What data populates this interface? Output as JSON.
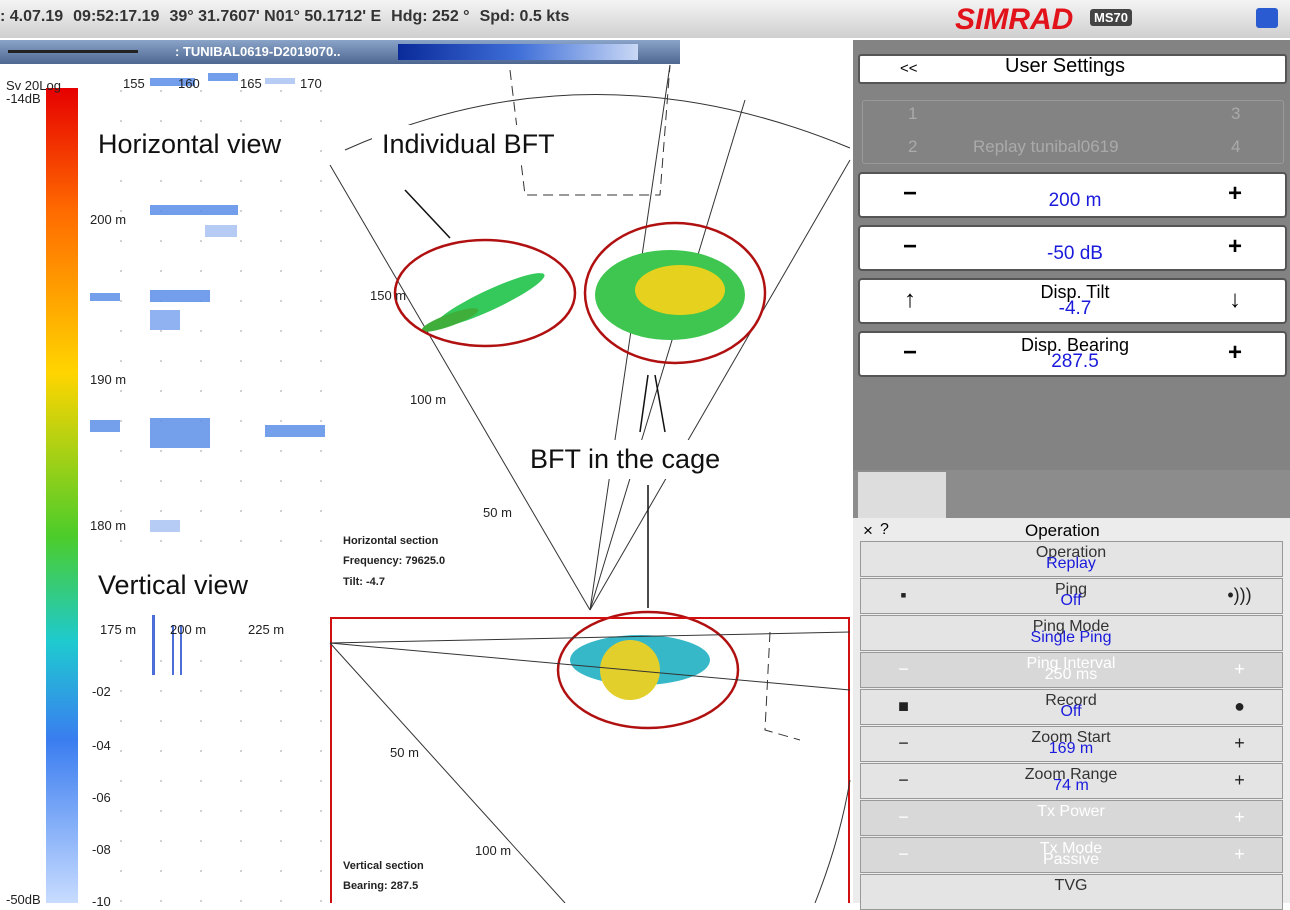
{
  "status_bar": {
    "items": [
      ": 4.07.19",
      "09:52:17.19",
      "39° 31.7607' N01° 50.1712' E",
      "Hdg: 252 °",
      "Spd: 0.5 kts"
    ],
    "brand": "SIMRAD",
    "model": "MS70"
  },
  "file_bar": {
    "name": ": TUNIBAL0619-D2019070.."
  },
  "color_scale": {
    "title": "Sv 20Log",
    "max": "-14dB",
    "min": "-50dB"
  },
  "horizontal_view": {
    "x_ticks": [
      "155",
      "160",
      "165",
      "170"
    ],
    "y_ticks": [
      "200 m",
      "190 m",
      "180 m"
    ],
    "ranges": [
      "150 m",
      "100 m",
      "50 m"
    ],
    "info": [
      "Horizontal section",
      "Frequency: 79625.0",
      "Tilt: -4.7"
    ]
  },
  "vertical_view": {
    "x_ticks": [
      "175 m",
      "200 m",
      "225 m"
    ],
    "y_ticks": [
      "-02",
      "-04",
      "-06",
      "-08",
      "-10"
    ],
    "ranges": [
      "50 m",
      "100 m"
    ],
    "info": [
      "Vertical section",
      "Bearing: 287.5"
    ]
  },
  "annotations": [
    "Horizontal view",
    "Individual BFT",
    "BFT in the cage",
    "Vertical view"
  ],
  "user_settings": {
    "back": "<<",
    "title": "User Settings",
    "tabs": [
      "1",
      "2",
      "3",
      "4"
    ],
    "replay": "Replay tunibal0619",
    "controls": [
      {
        "dec": "−",
        "value": "200 m",
        "inc": "+"
      },
      {
        "dec": "−",
        "value": "-50 dB",
        "inc": "+"
      },
      {
        "dec": "↑",
        "label": "Disp. Tilt",
        "value": "-4.7",
        "inc": "↓"
      },
      {
        "dec": "−",
        "label": "Disp. Bearing",
        "value": "287.5",
        "inc": "+"
      }
    ]
  },
  "operation": {
    "close": "×",
    "help": "?",
    "title": "Operation",
    "rows": [
      {
        "label": "Operation",
        "value": "Replay"
      },
      {
        "label": "Ping",
        "value": "Off",
        "dec": "▪",
        "inc": "•)))"
      },
      {
        "label": "Ping Mode",
        "value": "Single Ping"
      },
      {
        "label": "Ping Interval",
        "value": "250 ms",
        "dec": "−",
        "inc": "+",
        "disabled": true
      },
      {
        "label": "Record",
        "value": "Off",
        "dec": "■",
        "inc": "●"
      },
      {
        "label": "Zoom Start",
        "value": "169 m",
        "dec": "−",
        "inc": "+"
      },
      {
        "label": "Zoom Range",
        "value": "74 m",
        "dec": "−",
        "inc": "+"
      },
      {
        "label": "Tx Power",
        "dec": "−",
        "inc": "+",
        "disabled": true
      },
      {
        "label": "Tx Mode",
        "value": "Passive",
        "dec": "−",
        "inc": "+",
        "disabled": true
      },
      {
        "label": "TVG"
      }
    ]
  }
}
